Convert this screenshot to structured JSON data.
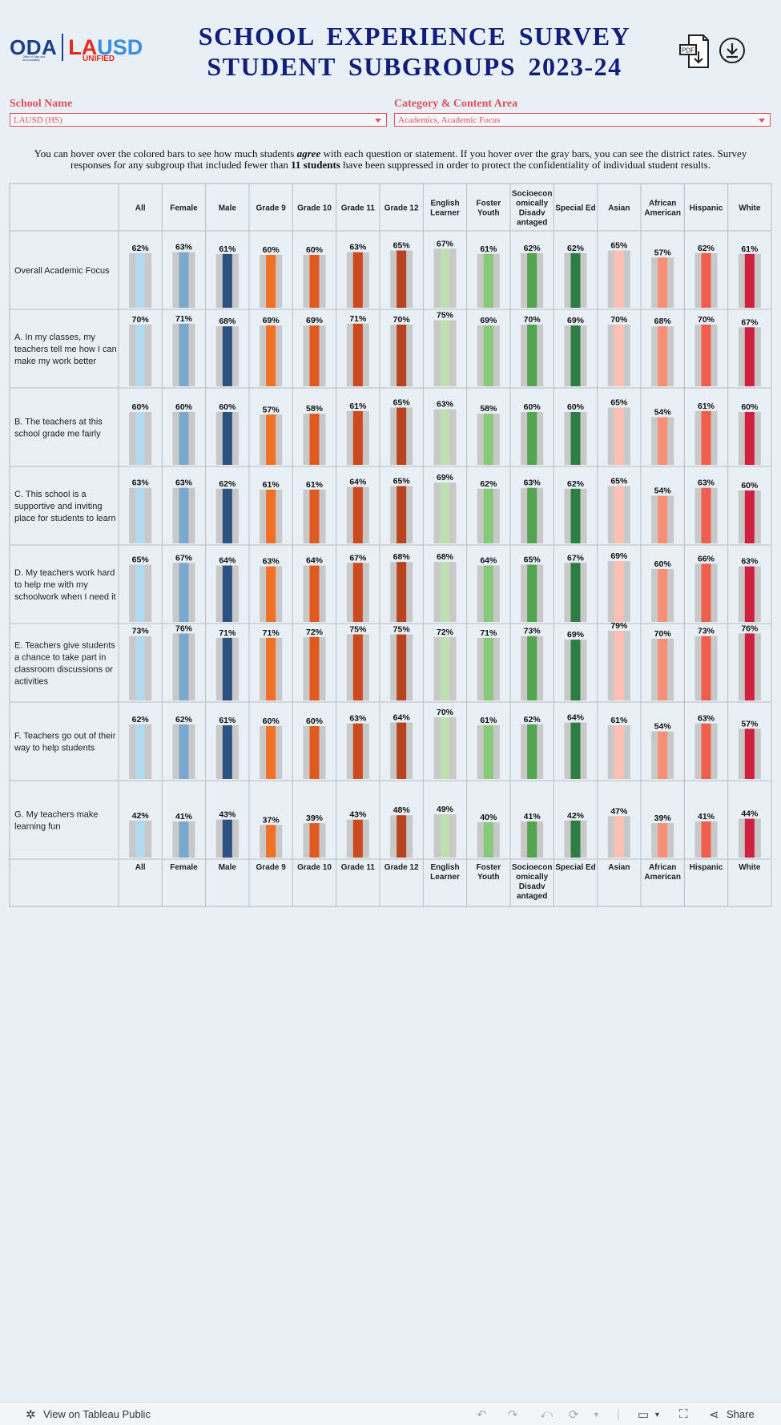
{
  "header": {
    "logo_oda": "ODA",
    "logo_oda_sub": "Office of Data and Accountability",
    "logo_lausd_1": "LA",
    "logo_lausd_2": "USD",
    "logo_unified": "UNIFIED",
    "title_line1": "SCHOOL EXPERIENCE SURVEY",
    "title_line2": "STUDENT SUBGROUPS 2023-24",
    "pdf_icon_label": "PDF"
  },
  "filters": {
    "school_label": "School Name",
    "school_value": "LAUSD (HS)",
    "category_label": "Category & Content Area",
    "category_value": "Academics, Academic Focus"
  },
  "intro": {
    "part1": "You can hover over the colored bars to see how much students ",
    "emph": "agree",
    "part2": " with each question or statement. If you hover over the gray bars, you can see the district rates. Survey responses for any subgroup that included fewer than ",
    "bold": "11 students",
    "part3": " have been suppressed in order to protect the confidentiality of individual student results."
  },
  "chart_data": {
    "type": "bar",
    "title": "SCHOOL EXPERIENCE SURVEY STUDENT SUBGROUPS 2023-24",
    "ylim": [
      0,
      100
    ],
    "categories": [
      "All",
      "Female",
      "Male",
      "Grade 9",
      "Grade 10",
      "Grade 11",
      "Grade 12",
      "English Learner",
      "Foster Youth",
      "Socioeconomically Disadvantaged",
      "Special Ed",
      "Asian",
      "African American",
      "Hispanic",
      "White"
    ],
    "category_labels": [
      [
        "All"
      ],
      [
        "Female"
      ],
      [
        "Male"
      ],
      [
        "Grade 9"
      ],
      [
        "Grade 10"
      ],
      [
        "Grade 11"
      ],
      [
        "Grade 12"
      ],
      [
        "English",
        "Learner"
      ],
      [
        "Foster",
        "Youth"
      ],
      [
        "Socioecon",
        "omically",
        "Disadv",
        "antaged"
      ],
      [
        "Special Ed"
      ],
      [
        "Asian"
      ],
      [
        "African",
        "American"
      ],
      [
        "Hispanic"
      ],
      [
        "White"
      ]
    ],
    "colors": [
      "#b3d9ee",
      "#7ba8d1",
      "#2c5282",
      "#f07025",
      "#e05a20",
      "#cc4a20",
      "#b8441f",
      "#bde0b0",
      "#86c97a",
      "#52a44f",
      "#2e7d45",
      "#fdc0b3",
      "#f78e75",
      "#ef5e4d",
      "#cf2040"
    ],
    "district_bar_color": "#c8c8c8",
    "series": [
      {
        "name": "Overall Academic Focus",
        "label_lines": [
          "Overall Academic Focus"
        ],
        "values": [
          62,
          63,
          61,
          60,
          60,
          63,
          65,
          67,
          61,
          62,
          62,
          65,
          57,
          62,
          61
        ]
      },
      {
        "name": "A. In my classes, my teachers tell me how I can make my work better",
        "label_lines": [
          "A. In my classes, my",
          "teachers tell me how I can",
          "make my work better"
        ],
        "values": [
          70,
          71,
          68,
          69,
          69,
          71,
          70,
          75,
          69,
          70,
          69,
          70,
          68,
          70,
          67
        ]
      },
      {
        "name": "B. The teachers at this school grade me fairly",
        "label_lines": [
          "B. The teachers at this",
          "school grade me fairly"
        ],
        "values": [
          60,
          60,
          60,
          57,
          58,
          61,
          65,
          63,
          58,
          60,
          60,
          65,
          54,
          61,
          60
        ]
      },
      {
        "name": "C. This school is a supportive and inviting place for students to learn",
        "label_lines": [
          "C. This school is a",
          "supportive and inviting",
          "place for students to learn"
        ],
        "values": [
          63,
          63,
          62,
          61,
          61,
          64,
          65,
          69,
          62,
          63,
          62,
          65,
          54,
          63,
          60
        ]
      },
      {
        "name": "D. My teachers work hard to help me with my schoolwork when I need it",
        "label_lines": [
          "D. My teachers work hard",
          "to help me with my",
          "schoolwork when I need it"
        ],
        "values": [
          65,
          67,
          64,
          63,
          64,
          67,
          68,
          68,
          64,
          65,
          67,
          69,
          60,
          66,
          63
        ]
      },
      {
        "name": "E. Teachers give students a chance to take part in classroom discussions or activities",
        "label_lines": [
          "E. Teachers give students",
          "a chance to take part in",
          "classroom discussions or",
          "activities"
        ],
        "values": [
          73,
          76,
          71,
          71,
          72,
          75,
          75,
          72,
          71,
          73,
          69,
          79,
          70,
          73,
          76
        ]
      },
      {
        "name": "F. Teachers go out of their way to help students",
        "label_lines": [
          "F. Teachers go out of their",
          "way to help students"
        ],
        "values": [
          62,
          62,
          61,
          60,
          60,
          63,
          64,
          70,
          61,
          62,
          64,
          61,
          54,
          63,
          57
        ]
      },
      {
        "name": "G. My teachers make learning fun",
        "label_lines": [
          "G. My teachers make",
          "learning fun"
        ],
        "values": [
          42,
          41,
          43,
          37,
          39,
          43,
          48,
          49,
          40,
          41,
          42,
          47,
          39,
          41,
          44
        ]
      }
    ]
  },
  "footer": {
    "view_label": "View on Tableau Public",
    "share_label": "Share"
  }
}
